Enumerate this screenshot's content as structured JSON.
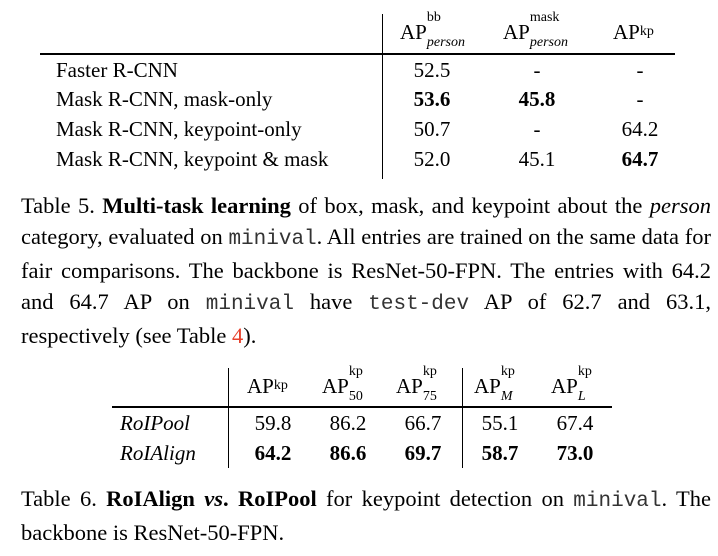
{
  "table5": {
    "headers": {
      "bb": {
        "base": "AP",
        "sup": "bb",
        "sub": "person"
      },
      "mask": {
        "base": "AP",
        "sup": "mask",
        "sub": "person"
      },
      "kp": {
        "base": "AP",
        "sup": "kp"
      }
    },
    "rows": [
      {
        "method": "Faster R-CNN",
        "bb": "52.5",
        "mask": "-",
        "kp": "-"
      },
      {
        "method": "Mask R-CNN, mask-only",
        "bb": "53.6",
        "mask": "45.8",
        "kp": "-"
      },
      {
        "method": "Mask R-CNN, keypoint-only",
        "bb": "50.7",
        "mask": "-",
        "kp": "64.2"
      },
      {
        "method": "Mask R-CNN, keypoint & mask",
        "bb": "52.0",
        "mask": "45.1",
        "kp": "64.7"
      }
    ],
    "caption": {
      "label": "Table 5.",
      "bold_title": "Multi-task learning",
      "t1": " of box, mask, and keypoint about the ",
      "italic_person": "person",
      "t2": " category, evaluated on ",
      "code_minival": "minival",
      "t3": ". All entries are trained on the same data for fair comparisons. The backbone is ResNet-50-FPN. The entries with 64.2 and 64.7 AP on ",
      "code_minival_2": "minival",
      "t4": " have ",
      "code_testdev": "test-dev",
      "t5": " AP of 62.7 and 63.1, respectively (see Table ",
      "ref": "4",
      "t6": ")."
    }
  },
  "table6": {
    "headers": [
      {
        "base": "AP",
        "sup": "kp",
        "sub": ""
      },
      {
        "base": "AP",
        "sup": "kp",
        "sub": "50"
      },
      {
        "base": "AP",
        "sup": "kp",
        "sub": "75"
      },
      {
        "base": "AP",
        "sup": "kp",
        "sub": "M"
      },
      {
        "base": "AP",
        "sup": "kp",
        "sub": "L"
      }
    ],
    "rows": [
      {
        "method": "RoIPool",
        "values": [
          "59.8",
          "86.2",
          "66.7",
          "55.1",
          "67.4"
        ]
      },
      {
        "method": "RoIAlign",
        "values": [
          "64.2",
          "86.6",
          "69.7",
          "58.7",
          "73.0"
        ]
      }
    ],
    "caption": {
      "label": "Table 6.",
      "bold_a": "RoIAlign",
      "bold_vs": "vs",
      "bold_b": ". RoIPool",
      "t1": " for keypoint detection on ",
      "code_minival": "minival",
      "t2": ". The backbone is ResNet-50-FPN."
    }
  }
}
